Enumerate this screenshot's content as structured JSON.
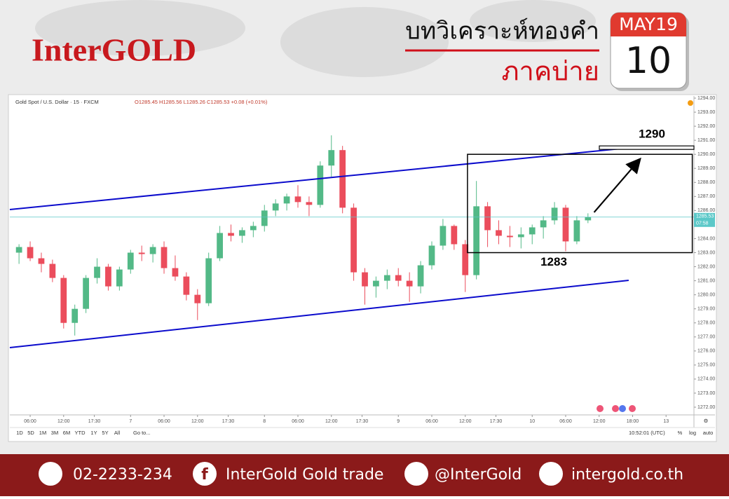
{
  "header": {
    "brand": "InterGOLD",
    "title": "บทวิเคราะห์ทองคำ",
    "subtitle": "ภาคบ่าย",
    "calendar_month": "MAY19",
    "calendar_day": "10"
  },
  "chart_data": {
    "type": "candlestick",
    "symbol": "Gold Spot / U.S. Dollar · 15 · FXCM",
    "ohlc_text": "O1285.45 H1285.56 L1285.26 C1285.53 +0.08 (+0.01%)",
    "x": [
      4,
      6,
      8,
      10,
      12,
      14,
      16,
      18,
      20,
      22,
      24,
      26,
      28,
      30,
      32,
      34,
      36,
      38,
      40,
      42,
      44,
      46,
      48,
      50,
      52,
      54,
      56,
      58,
      60,
      62,
      64,
      66,
      68,
      70,
      72,
      74,
      76,
      78,
      80,
      82,
      84,
      86,
      88,
      90,
      92,
      94,
      96,
      98,
      100,
      102,
      104,
      106
    ],
    "open": [
      1283.0,
      1283.4,
      1282.6,
      1282.2,
      1281.2,
      1278.0,
      1279.0,
      1281.2,
      1282.0,
      1280.6,
      1281.8,
      1283.0,
      1282.9,
      1283.4,
      1281.9,
      1281.3,
      1280.0,
      1279.4,
      1282.6,
      1284.4,
      1284.2,
      1284.6,
      1284.9,
      1286.0,
      1286.5,
      1287.0,
      1286.6,
      1286.4,
      1289.2,
      1290.3,
      1286.2,
      1281.6,
      1280.6,
      1281.0,
      1281.4,
      1281.0,
      1280.6,
      1282.1,
      1283.5,
      1284.9,
      1283.6,
      1281.4,
      1286.3,
      1284.6,
      1284.2,
      1284.1,
      1284.3,
      1284.8,
      1285.3,
      1286.2,
      1283.8,
      1285.3
    ],
    "high": [
      1283.6,
      1283.8,
      1283.0,
      1282.5,
      1281.4,
      1279.3,
      1281.4,
      1282.6,
      1282.2,
      1282.0,
      1283.2,
      1283.5,
      1283.6,
      1283.8,
      1282.8,
      1281.6,
      1280.4,
      1283.0,
      1284.9,
      1285.0,
      1284.8,
      1285.2,
      1286.4,
      1286.8,
      1287.2,
      1287.8,
      1287.0,
      1289.5,
      1291.35,
      1290.6,
      1286.5,
      1281.9,
      1281.3,
      1281.8,
      1281.9,
      1281.6,
      1282.4,
      1283.8,
      1285.4,
      1285.0,
      1283.9,
      1288.1,
      1286.6,
      1285.3,
      1284.9,
      1284.8,
      1285.0,
      1285.6,
      1286.6,
      1286.4,
      1285.6,
      1285.8
    ],
    "low": [
      1282.2,
      1282.4,
      1281.6,
      1280.9,
      1277.6,
      1277.1,
      1278.7,
      1280.8,
      1280.3,
      1280.3,
      1281.5,
      1282.4,
      1282.3,
      1281.5,
      1281.0,
      1279.6,
      1278.2,
      1279.2,
      1282.4,
      1283.8,
      1283.7,
      1284.1,
      1284.5,
      1285.6,
      1286.0,
      1286.2,
      1285.6,
      1286.2,
      1288.4,
      1285.8,
      1281.0,
      1279.3,
      1279.8,
      1280.4,
      1280.6,
      1279.5,
      1280.1,
      1281.8,
      1283.2,
      1283.2,
      1280.2,
      1281.1,
      1283.4,
      1283.6,
      1283.4,
      1283.3,
      1283.6,
      1284.0,
      1285.0,
      1283.1,
      1283.6,
      1285.1
    ],
    "close": [
      1283.4,
      1282.6,
      1282.2,
      1281.2,
      1278.0,
      1279.0,
      1281.2,
      1282.0,
      1280.6,
      1281.8,
      1283.0,
      1282.9,
      1283.4,
      1281.9,
      1281.3,
      1280.0,
      1279.4,
      1282.6,
      1284.4,
      1284.2,
      1284.6,
      1284.9,
      1286.0,
      1286.5,
      1287.0,
      1286.6,
      1286.4,
      1289.2,
      1290.3,
      1286.2,
      1281.6,
      1280.6,
      1281.0,
      1281.4,
      1281.0,
      1280.6,
      1282.1,
      1283.5,
      1284.9,
      1283.6,
      1281.4,
      1286.3,
      1284.6,
      1284.2,
      1284.1,
      1284.3,
      1284.8,
      1285.3,
      1286.2,
      1283.8,
      1285.3,
      1285.53
    ],
    "up_color": "#53b987",
    "down_color": "#eb4d5c",
    "xlim": [
      2.35,
      125
    ],
    "ylim": [
      1271.45,
      1294.15
    ],
    "xticks": [
      {
        "value": 6,
        "label": "06:00"
      },
      {
        "value": 12,
        "label": "12:00"
      },
      {
        "value": 17.5,
        "label": "17:30"
      },
      {
        "value": 24,
        "label": "7"
      },
      {
        "value": 30,
        "label": "06:00"
      },
      {
        "value": 36,
        "label": "12:00"
      },
      {
        "value": 41.5,
        "label": "17:30"
      },
      {
        "value": 48,
        "label": "8"
      },
      {
        "value": 54,
        "label": "06:00"
      },
      {
        "value": 60,
        "label": "12:00"
      },
      {
        "value": 65.5,
        "label": "17:30"
      },
      {
        "value": 72,
        "label": "9"
      },
      {
        "value": 78,
        "label": "06:00"
      },
      {
        "value": 84,
        "label": "12:00"
      },
      {
        "value": 89.5,
        "label": "17:30"
      },
      {
        "value": 96,
        "label": "10"
      },
      {
        "value": 102,
        "label": "06:00"
      },
      {
        "value": 108,
        "label": "12:00"
      },
      {
        "value": 114,
        "label": "18:00"
      },
      {
        "value": 120,
        "label": "13"
      }
    ],
    "yticks": [
      {
        "value": 1272,
        "label": "1272.00"
      },
      {
        "value": 1273,
        "label": "1273.00"
      },
      {
        "value": 1274,
        "label": "1274.00"
      },
      {
        "value": 1275,
        "label": "1275.00"
      },
      {
        "value": 1276,
        "label": "1276.00"
      },
      {
        "value": 1277,
        "label": "1277.00"
      },
      {
        "value": 1278,
        "label": "1278.00"
      },
      {
        "value": 1279,
        "label": "1279.00"
      },
      {
        "value": 1280,
        "label": "1280.00"
      },
      {
        "value": 1281,
        "label": "1281.00"
      },
      {
        "value": 1282,
        "label": "1282.00"
      },
      {
        "value": 1283,
        "label": "1283.00"
      },
      {
        "value": 1284,
        "label": "1284.00"
      },
      {
        "value": 1285,
        "label": "1285.00"
      },
      {
        "value": 1286,
        "label": "1286.00"
      },
      {
        "value": 1287,
        "label": "1287.00"
      },
      {
        "value": 1288,
        "label": "1288.00"
      },
      {
        "value": 1289,
        "label": "1289.00"
      },
      {
        "value": 1290,
        "label": "1290.00"
      },
      {
        "value": 1291,
        "label": "1291.00"
      },
      {
        "value": 1292,
        "label": "1292.00"
      },
      {
        "value": 1293,
        "label": "1293.00"
      },
      {
        "value": 1294,
        "label": "1294.00"
      }
    ],
    "last_price": 1285.53,
    "last_price_color": "#5bc8c8",
    "countdown": "07:58",
    "trendlines": [
      {
        "x": [
          2.35,
          114.3
        ],
        "y": [
          1286.07,
          1290.5
        ],
        "color": "#0b0bcc"
      },
      {
        "x": [
          2.35,
          113.3
        ],
        "y": [
          1276.24,
          1281.03
        ],
        "color": "#0b0bcc"
      }
    ],
    "arrow": {
      "x": [
        107.1,
        115.2
      ],
      "y": [
        1285.87,
        1289.6
      ],
      "color": "#000000"
    },
    "box_x": [
      84.4,
      124.7
    ],
    "levels": [
      {
        "value": 1290,
        "label": "1290"
      },
      {
        "value": 1283,
        "label": "1283"
      }
    ]
  },
  "toolbar": {
    "ranges": [
      "1D",
      "5D",
      "1M",
      "3M",
      "6M",
      "YTD",
      "1Y",
      "5Y",
      "All"
    ],
    "goto": "Go to...",
    "clock": "10:52:01 (UTC)",
    "options": [
      "%",
      "log",
      "auto"
    ]
  },
  "footer": {
    "phone": "02-2233-234",
    "facebook": "InterGold Gold trade",
    "line": "@InterGold",
    "website": "intergold.co.th"
  }
}
